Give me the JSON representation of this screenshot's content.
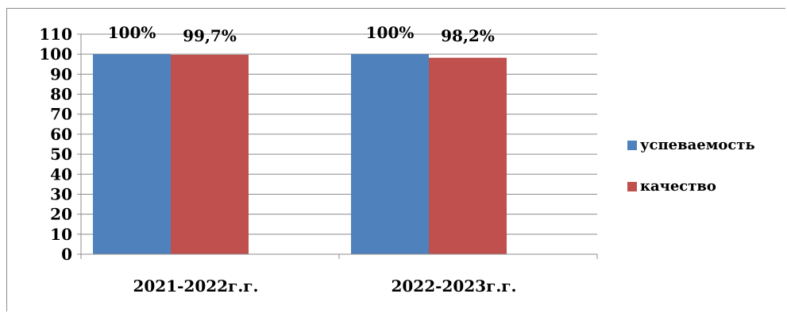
{
  "chart_data": {
    "type": "bar",
    "categories": [
      "2021-2022г.г.",
      "2022-2023г.г."
    ],
    "series": [
      {
        "name": "успеваемость",
        "values": [
          100,
          100
        ],
        "labels": [
          "100%",
          "100%"
        ],
        "color": "#4F81BD"
      },
      {
        "name": "качество",
        "values": [
          99.7,
          98.2
        ],
        "labels": [
          "99,7%",
          "98,2%"
        ],
        "color": "#C0504D"
      }
    ],
    "ylim": [
      0,
      110
    ],
    "yticks": [
      0,
      10,
      20,
      30,
      40,
      50,
      60,
      70,
      80,
      90,
      100,
      110
    ],
    "grid": true,
    "legend": "right"
  }
}
